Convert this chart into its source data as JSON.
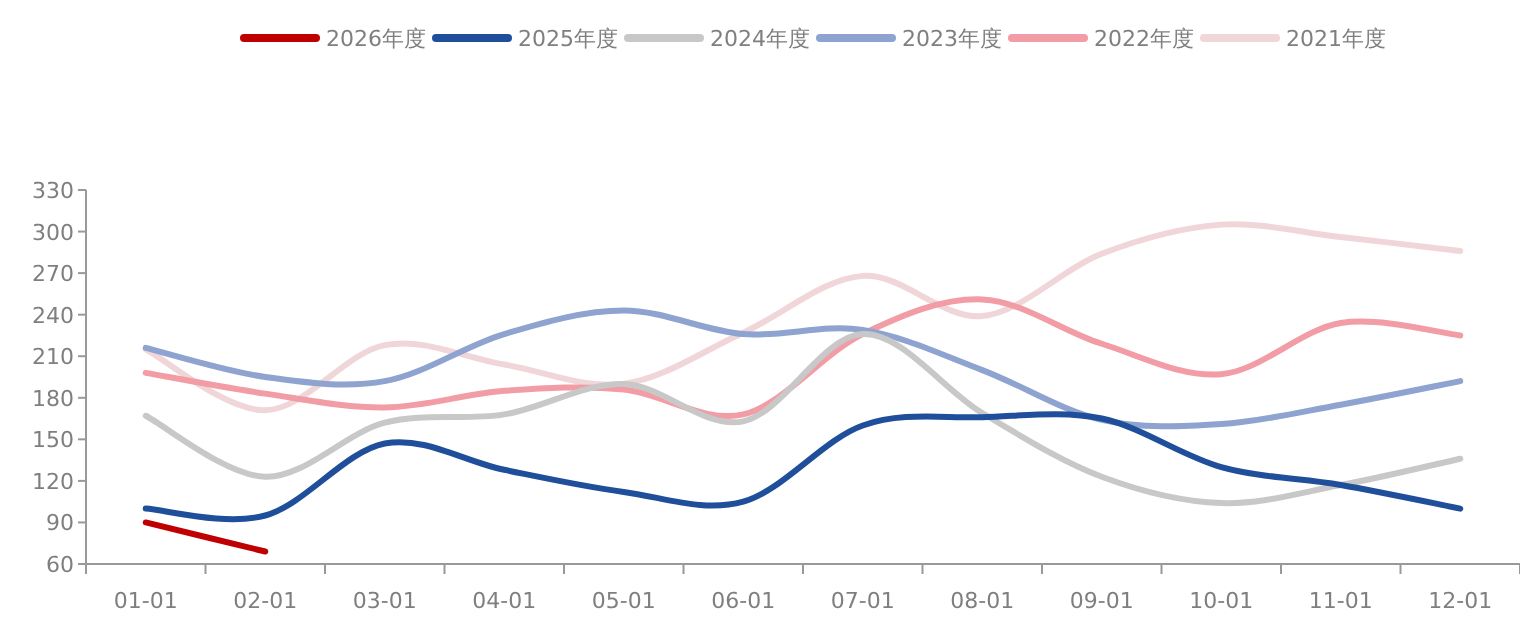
{
  "chart_data": {
    "type": "line",
    "categories": [
      "01-01",
      "02-01",
      "03-01",
      "04-01",
      "05-01",
      "06-01",
      "07-01",
      "08-01",
      "09-01",
      "10-01",
      "11-01",
      "12-01"
    ],
    "series": [
      {
        "name": "2026年度",
        "color": "#c00000",
        "values": [
          90,
          69,
          null,
          null,
          null,
          null,
          null,
          null,
          null,
          null,
          null,
          null
        ]
      },
      {
        "name": "2025年度",
        "color": "#1f4e9a",
        "values": [
          100,
          95,
          147,
          128,
          112,
          105,
          160,
          166,
          165,
          130,
          117,
          100
        ]
      },
      {
        "name": "2024年度",
        "color": "#c8c8c8",
        "values": [
          167,
          123,
          162,
          168,
          190,
          163,
          226,
          169,
          123,
          104,
          117,
          136
        ]
      },
      {
        "name": "2023年度",
        "color": "#8ea3cf",
        "values": [
          216,
          195,
          192,
          226,
          243,
          226,
          229,
          200,
          164,
          161,
          175,
          192
        ]
      },
      {
        "name": "2022年度",
        "color": "#f29ca6",
        "values": [
          198,
          183,
          173,
          185,
          186,
          168,
          226,
          251,
          219,
          197,
          234,
          225
        ]
      },
      {
        "name": "2021年度",
        "color": "#f0d6d8",
        "values": [
          215,
          171,
          218,
          204,
          190,
          227,
          268,
          239,
          284,
          305,
          296,
          286
        ]
      }
    ],
    "ylim": [
      60,
      330
    ],
    "yticks": [
      60,
      90,
      120,
      150,
      180,
      210,
      240,
      270,
      300,
      330
    ],
    "legend": "top"
  }
}
